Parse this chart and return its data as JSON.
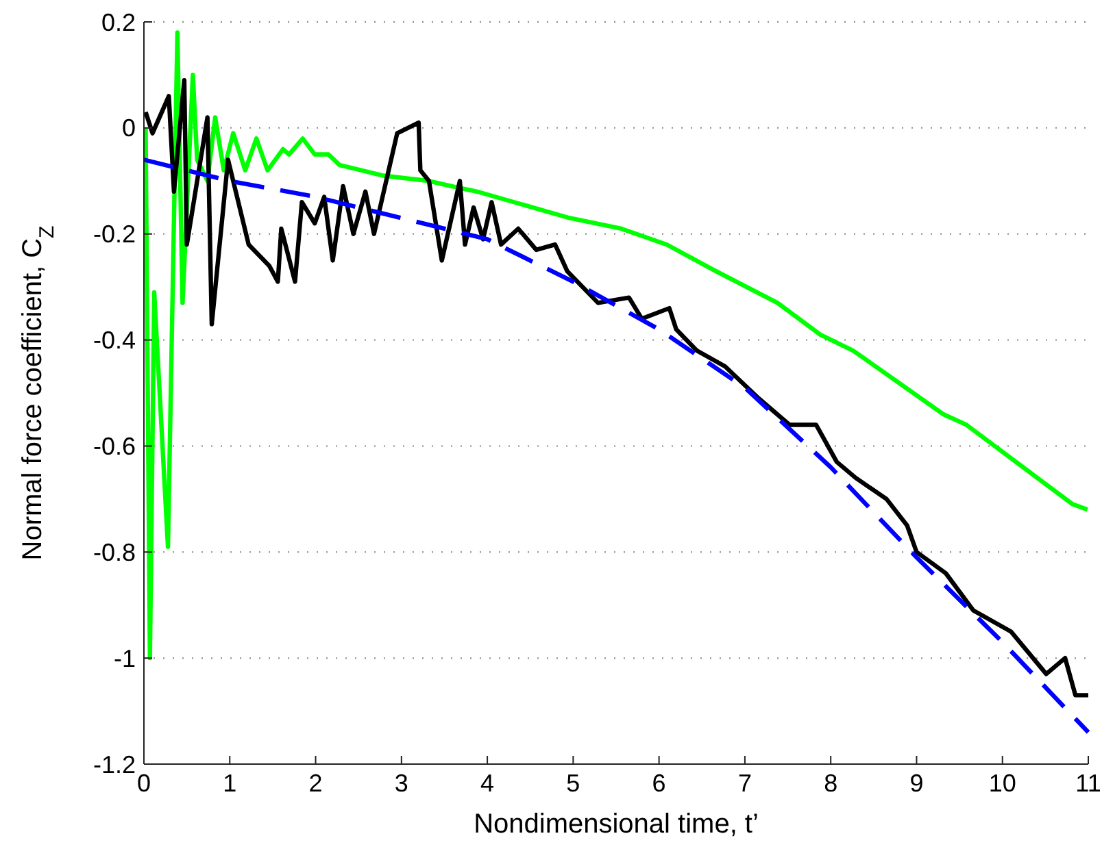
{
  "chart_data": {
    "type": "line",
    "xlabel": "Nondimensional time, t’",
    "ylabel": "Normal force coefficient, C$_{Z}$",
    "xlim": [
      0,
      11
    ],
    "ylim": [
      -1.2,
      0.2
    ],
    "xticks": [
      0,
      1,
      2,
      3,
      4,
      5,
      6,
      7,
      8,
      9,
      10,
      11
    ],
    "yticks": [
      -1.2,
      -1,
      -0.8,
      -0.6,
      -0.4,
      -0.2,
      0,
      0.2
    ],
    "grid": "y",
    "marker": "none",
    "series": [
      {
        "color": "#00ff00",
        "line_style": "solid",
        "x": [
          0.02,
          0.07,
          0.12,
          0.28,
          0.39,
          0.45,
          0.57,
          0.62,
          0.74,
          0.83,
          0.93,
          1.04,
          1.18,
          1.31,
          1.44,
          1.62,
          1.69,
          1.85,
          1.99,
          2.15,
          2.28,
          2.79,
          3.32,
          3.59,
          3.88,
          4.96,
          5.56,
          6.09,
          6.66,
          7.38,
          7.88,
          8.26,
          8.7,
          9.31,
          9.58,
          10.24,
          10.82,
          10.99
        ],
        "values": [
          0.0,
          -1.0,
          -0.31,
          -0.79,
          0.18,
          -0.33,
          0.1,
          -0.06,
          -0.1,
          0.02,
          -0.08,
          -0.01,
          -0.08,
          -0.02,
          -0.08,
          -0.04,
          -0.05,
          -0.02,
          -0.05,
          -0.05,
          -0.07,
          -0.09,
          -0.1,
          -0.11,
          -0.12,
          -0.17,
          -0.19,
          -0.22,
          -0.27,
          -0.33,
          -0.39,
          -0.42,
          -0.47,
          -0.54,
          -0.56,
          -0.64,
          -0.71,
          -0.72
        ]
      },
      {
        "color": "#000000",
        "line_style": "solid",
        "x": [
          0.02,
          0.1,
          0.29,
          0.35,
          0.47,
          0.5,
          0.74,
          0.79,
          0.98,
          1.22,
          1.46,
          1.56,
          1.6,
          1.76,
          1.84,
          1.99,
          2.1,
          2.2,
          2.32,
          2.44,
          2.58,
          2.68,
          2.95,
          3.2,
          3.22,
          3.32,
          3.47,
          3.68,
          3.74,
          3.84,
          3.95,
          4.05,
          4.16,
          4.36,
          4.57,
          4.79,
          4.93,
          5.29,
          5.65,
          5.8,
          6.12,
          6.2,
          6.44,
          6.77,
          7.16,
          7.52,
          7.83,
          8.07,
          8.29,
          8.65,
          8.89,
          9.0,
          9.34,
          9.66,
          10.1,
          10.51,
          10.73,
          10.85,
          11.0
        ],
        "values": [
          0.03,
          -0.01,
          0.06,
          -0.12,
          0.09,
          -0.22,
          0.02,
          -0.37,
          -0.06,
          -0.22,
          -0.26,
          -0.29,
          -0.19,
          -0.29,
          -0.14,
          -0.18,
          -0.13,
          -0.25,
          -0.11,
          -0.2,
          -0.12,
          -0.2,
          -0.01,
          0.01,
          -0.08,
          -0.1,
          -0.25,
          -0.1,
          -0.22,
          -0.15,
          -0.21,
          -0.14,
          -0.22,
          -0.19,
          -0.23,
          -0.22,
          -0.27,
          -0.33,
          -0.32,
          -0.36,
          -0.34,
          -0.38,
          -0.42,
          -0.45,
          -0.51,
          -0.56,
          -0.56,
          -0.63,
          -0.66,
          -0.7,
          -0.75,
          -0.8,
          -0.84,
          -0.91,
          -0.95,
          -1.03,
          -1.0,
          -1.07,
          -1.07
        ]
      },
      {
        "color": "#0000ff",
        "line_style": "dashed",
        "x": [
          0,
          1,
          2,
          3,
          4,
          5,
          6,
          7,
          8,
          9,
          10,
          11
        ],
        "values": [
          -0.06,
          -0.1,
          -0.13,
          -0.17,
          -0.21,
          -0.29,
          -0.38,
          -0.49,
          -0.64,
          -0.81,
          -0.97,
          -1.14
        ]
      }
    ]
  }
}
